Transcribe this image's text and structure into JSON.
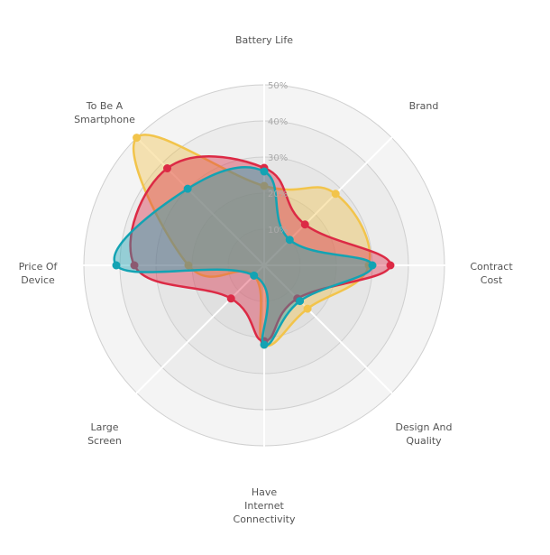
{
  "chart_data": {
    "type": "radar",
    "axes": [
      "Battery Life",
      "Brand",
      "Contract Cost",
      "Design And Quality",
      "Have Internet Connectivity",
      "Large Screen",
      "Price Of Device",
      "To Be A Smartphone"
    ],
    "ticks": [
      "10%",
      "20%",
      "30%",
      "40%",
      "50%"
    ],
    "rlim": [
      0,
      50
    ],
    "series": [
      {
        "color": "#f2c44b",
        "values": [
          22,
          28,
          29,
          17,
          22,
          4,
          21,
          50
        ]
      },
      {
        "color": "#dc2a45",
        "values": [
          27,
          16,
          35,
          13,
          21,
          13,
          36,
          38
        ]
      },
      {
        "color": "#13a3b3",
        "values": [
          26,
          10,
          30,
          14,
          22,
          4,
          41,
          30
        ]
      }
    ],
    "grid": true,
    "legend": "none"
  }
}
